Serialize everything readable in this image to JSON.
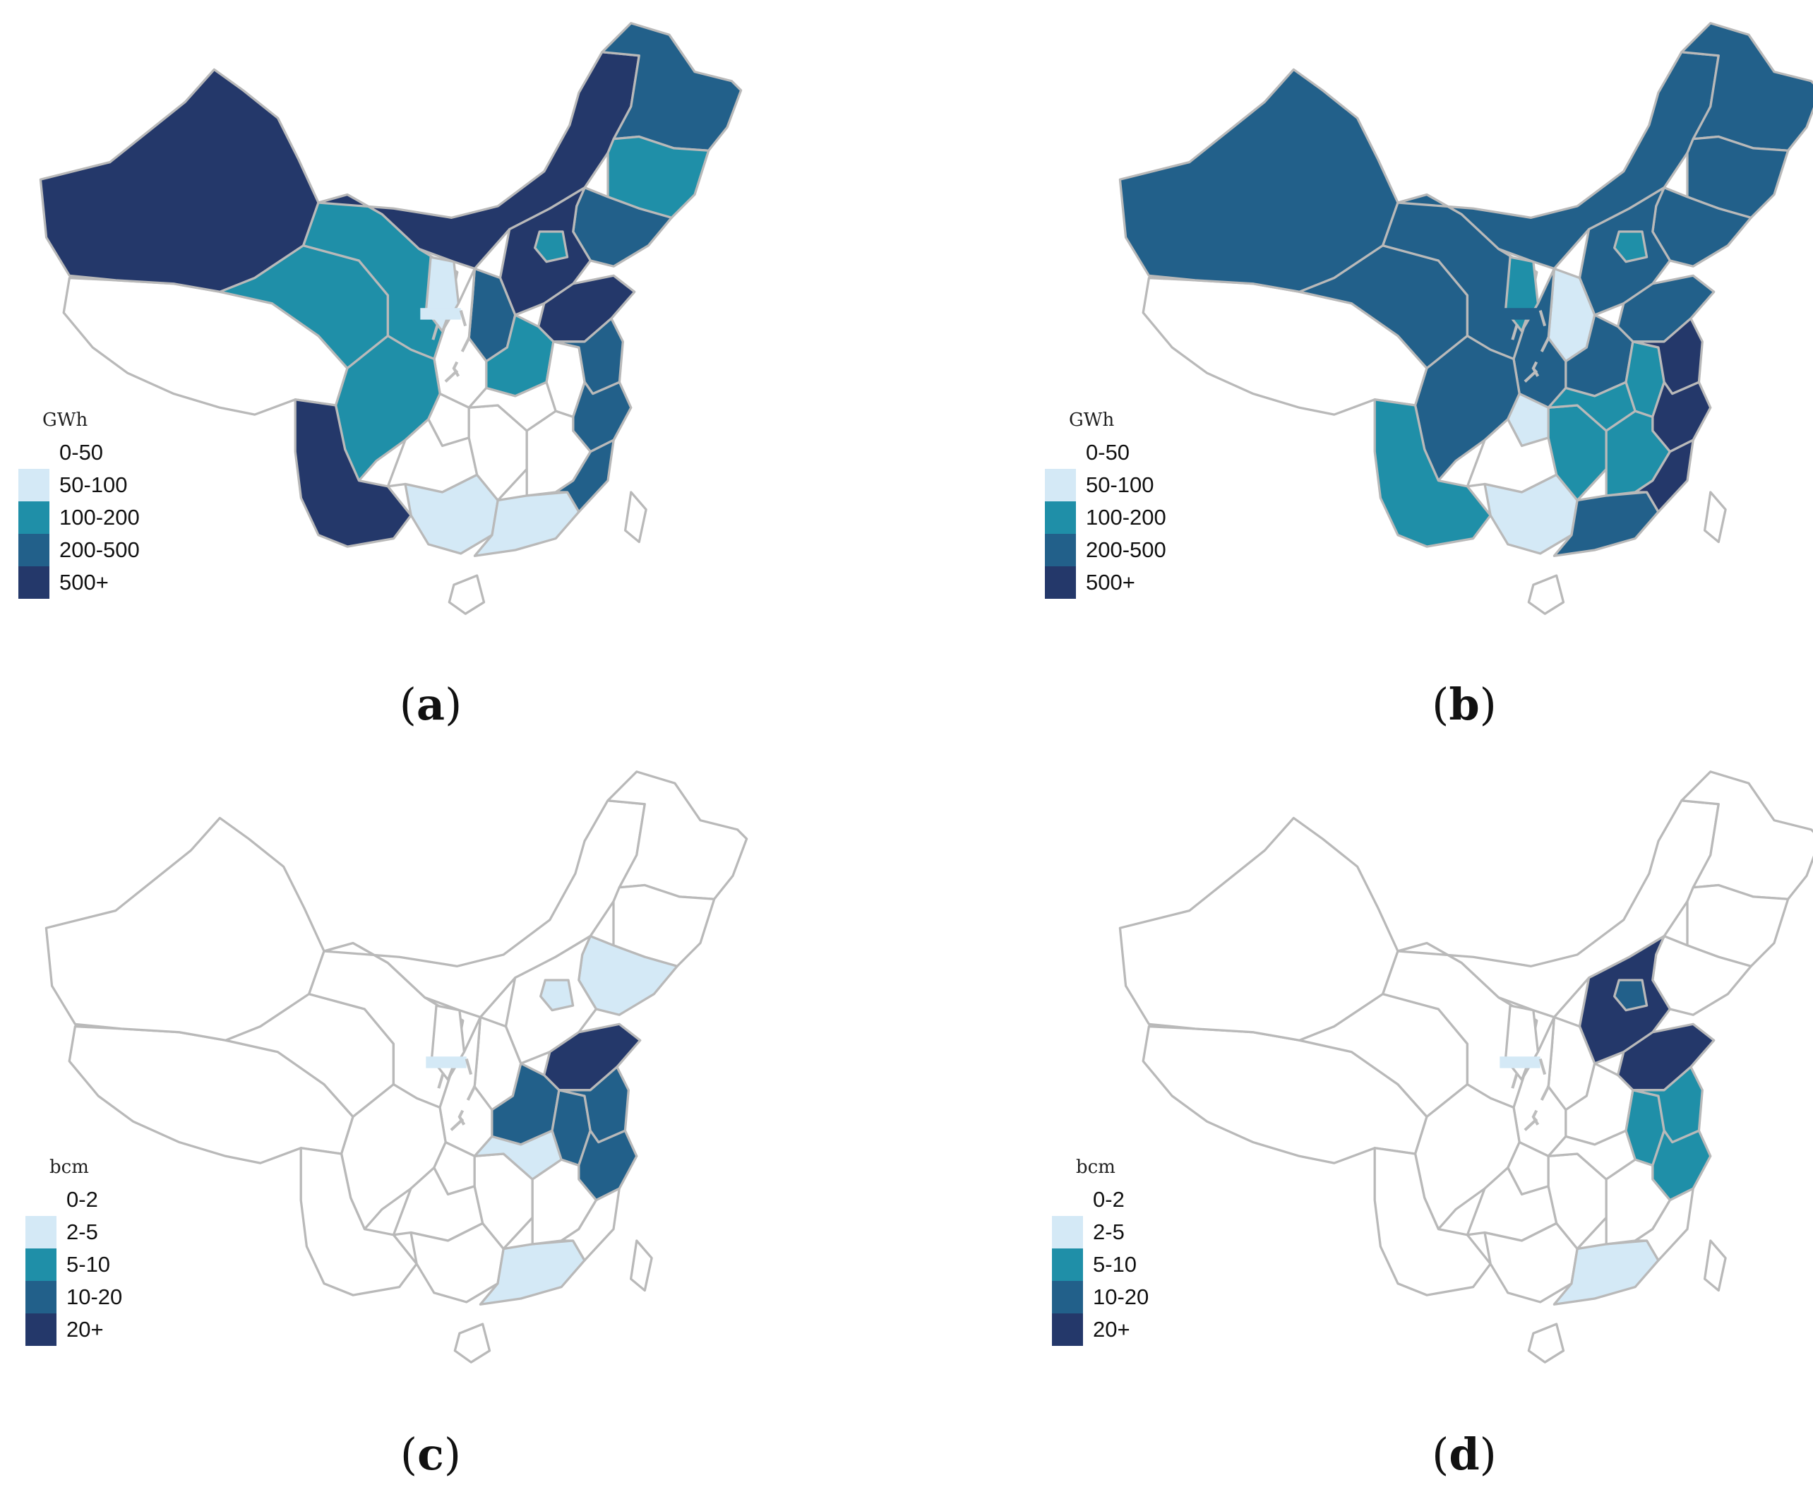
{
  "legend_colors": {
    "c0": "#ffffff",
    "c1": "#d4e9f6",
    "c2": "#1f8fa8",
    "c3": "#22608a",
    "c4": "#24386a"
  },
  "panels": [
    {
      "caption": "a",
      "legend": {
        "unit": "GWh",
        "classes": [
          "0-50",
          "50-100",
          "100-200",
          "200-500",
          "500+"
        ]
      },
      "regions": {
        "xinjiang": 4,
        "tibet": 0,
        "qinghai": 2,
        "gansu": 2,
        "ningxia": 1,
        "inner_mongolia": 4,
        "heilongjiang": 3,
        "jilin": 2,
        "liaoning": 3,
        "hebei": 4,
        "beijing": 2,
        "shanxi": 3,
        "shandong": 4,
        "henan": 2,
        "shaanxi": 0,
        "sichuan": 2,
        "chongqing": 0,
        "yunnan": 4,
        "guizhou": 0,
        "guangxi": 1,
        "guangdong": 1,
        "hunan": 0,
        "hubei": 0,
        "anhui": 0,
        "jiangsu": 3,
        "zhejiang": 3,
        "jiangxi": 0,
        "fujian": 3,
        "hainan": 0,
        "taiwan": 0,
        "inset": 1
      }
    },
    {
      "caption": "b",
      "legend": {
        "unit": "GWh",
        "classes": [
          "0-50",
          "50-100",
          "100-200",
          "200-500",
          "500+"
        ]
      },
      "regions": {
        "xinjiang": 3,
        "tibet": 0,
        "qinghai": 3,
        "gansu": 3,
        "ningxia": 2,
        "inner_mongolia": 3,
        "heilongjiang": 3,
        "jilin": 3,
        "liaoning": 3,
        "hebei": 3,
        "beijing": 2,
        "shanxi": 1,
        "shandong": 3,
        "henan": 3,
        "shaanxi": 3,
        "sichuan": 3,
        "chongqing": 1,
        "yunnan": 2,
        "guizhou": 0,
        "guangxi": 1,
        "guangdong": 3,
        "hunan": 2,
        "hubei": 2,
        "anhui": 2,
        "jiangsu": 4,
        "zhejiang": 4,
        "jiangxi": 2,
        "fujian": 4,
        "hainan": 0,
        "taiwan": 0,
        "inset": 3
      }
    },
    {
      "caption": "c",
      "legend": {
        "unit": "bcm",
        "classes": [
          "0-2",
          "2-5",
          "5-10",
          "10-20",
          "20+"
        ]
      },
      "regions": {
        "xinjiang": 0,
        "tibet": 0,
        "qinghai": 0,
        "gansu": 0,
        "ningxia": 0,
        "inner_mongolia": 0,
        "heilongjiang": 0,
        "jilin": 0,
        "liaoning": 1,
        "hebei": 0,
        "beijing": 1,
        "shanxi": 0,
        "shandong": 4,
        "henan": 3,
        "shaanxi": 0,
        "sichuan": 0,
        "chongqing": 0,
        "yunnan": 0,
        "guizhou": 0,
        "guangxi": 0,
        "guangdong": 1,
        "hunan": 0,
        "hubei": 1,
        "anhui": 3,
        "jiangsu": 3,
        "zhejiang": 3,
        "jiangxi": 0,
        "fujian": 0,
        "hainan": 0,
        "taiwan": 0,
        "inset": 1
      }
    },
    {
      "caption": "d",
      "legend": {
        "unit": "bcm",
        "classes": [
          "0-2",
          "2-5",
          "5-10",
          "10-20",
          "20+"
        ]
      },
      "regions": {
        "xinjiang": 0,
        "tibet": 0,
        "qinghai": 0,
        "gansu": 0,
        "ningxia": 0,
        "inner_mongolia": 0,
        "heilongjiang": 0,
        "jilin": 0,
        "liaoning": 0,
        "hebei": 4,
        "beijing": 3,
        "shanxi": 0,
        "shandong": 4,
        "henan": 0,
        "shaanxi": 0,
        "sichuan": 0,
        "chongqing": 0,
        "yunnan": 0,
        "guizhou": 0,
        "guangxi": 0,
        "guangdong": 1,
        "hunan": 0,
        "hubei": 0,
        "anhui": 2,
        "jiangsu": 2,
        "zhejiang": 2,
        "jiangxi": 0,
        "fujian": 0,
        "hainan": 0,
        "taiwan": 0,
        "inset": 1
      }
    }
  ]
}
